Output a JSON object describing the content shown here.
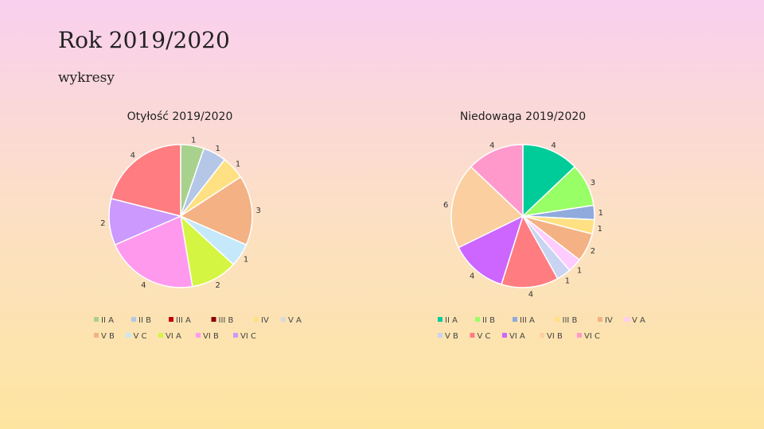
{
  "page": {
    "title": "Rok 2019/2020",
    "subtitle": "wykresy"
  },
  "chart_data": [
    {
      "type": "pie",
      "title": "Otyłość 2019/2020",
      "slices": [
        {
          "name": "II A",
          "value": 1,
          "color": "#a9d18e",
          "show_label": true
        },
        {
          "name": "II B",
          "value": 1,
          "color": "#b4c7e7",
          "show_label": true
        },
        {
          "name": "III A",
          "value": 0,
          "color": "#c00000",
          "show_label": false
        },
        {
          "name": "III B",
          "value": 0,
          "color": "#8b0000",
          "show_label": false
        },
        {
          "name": "IV",
          "value": 1,
          "color": "#ffe082",
          "show_label": true
        },
        {
          "name": "V A",
          "value": 0,
          "color": "#d9d9d9",
          "show_label": false
        },
        {
          "name": "V B",
          "value": 3,
          "color": "#f4b183",
          "show_label": true
        },
        {
          "name": "V C",
          "value": 1,
          "color": "#c5e8fb",
          "show_label": true
        },
        {
          "name": "VI A",
          "value": 2,
          "color": "#d4f542",
          "show_label": true
        },
        {
          "name": "VI B",
          "value": 4,
          "color": "#ff99ee",
          "show_label": true
        },
        {
          "name": "VI C",
          "value": 2,
          "color": "#cc99ff",
          "show_label": true
        },
        {
          "name": "",
          "value": 4,
          "color": "#ff7c80",
          "show_label": true
        }
      ],
      "legend_rows": [
        [
          "II A",
          "II B",
          "III A",
          "III B",
          "IV",
          "V A"
        ],
        [
          "V B",
          "V C",
          "VI A",
          "VI B",
          "VI C"
        ]
      ]
    },
    {
      "type": "pie",
      "title": "Niedowaga 2019/2020",
      "slices": [
        {
          "name": "II A",
          "value": 4,
          "color": "#00cc99",
          "show_label": true
        },
        {
          "name": "II B",
          "value": 3,
          "color": "#99ff66",
          "show_label": true
        },
        {
          "name": "III A",
          "value": 1,
          "color": "#8faadc",
          "show_label": true
        },
        {
          "name": "III B",
          "value": 1,
          "color": "#ffe082",
          "show_label": true
        },
        {
          "name": "IV",
          "value": 2,
          "color": "#f4b183",
          "show_label": true
        },
        {
          "name": "V A",
          "value": 1,
          "color": "#ffccff",
          "show_label": true
        },
        {
          "name": "V B",
          "value": 1,
          "color": "#c9d3f2",
          "show_label": true
        },
        {
          "name": "V C",
          "value": 4,
          "color": "#ff7c80",
          "show_label": true
        },
        {
          "name": "VI A",
          "value": 4,
          "color": "#cc66ff",
          "show_label": true
        },
        {
          "name": "VI B",
          "value": 6,
          "color": "#fbcfa0",
          "show_label": true
        },
        {
          "name": "VI C",
          "value": 4,
          "color": "#ff99cc",
          "show_label": true
        }
      ],
      "legend_rows": [
        [
          "II A",
          "II B",
          "III A",
          "III B",
          "IV",
          "V A"
        ],
        [
          "V B",
          "V C",
          "VI A",
          "VI B",
          "VI C"
        ]
      ]
    }
  ]
}
